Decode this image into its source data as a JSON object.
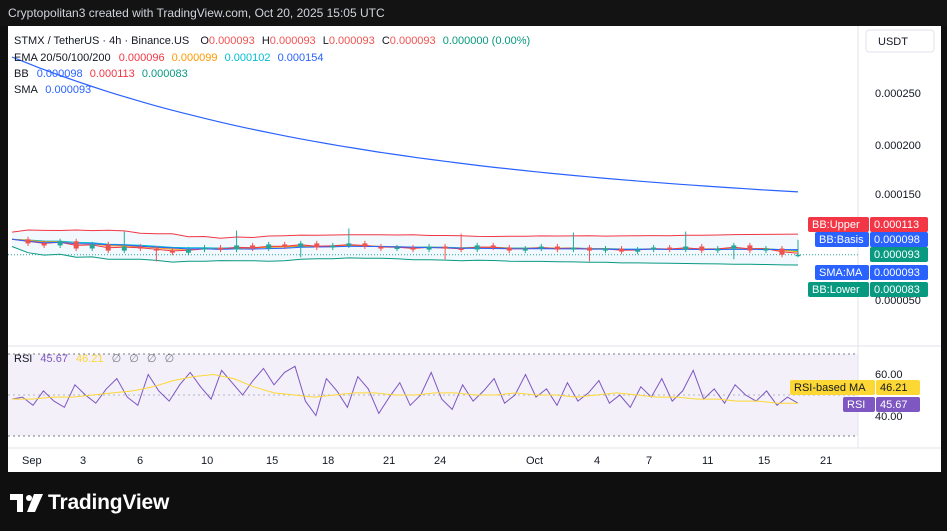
{
  "header": {
    "text": "Cryptopolitan3 created with TradingView.com, Oct 20, 2025 15:05 UTC"
  },
  "footer": {
    "brand": "TradingView"
  },
  "legend": {
    "symbol": "STMX / TetherUS · 4h · Binance.US",
    "ohlc": {
      "o_label": "O",
      "o": "0.000093",
      "h_label": "H",
      "h": "0.000093",
      "l_label": "L",
      "l": "0.000093",
      "c_label": "C",
      "c": "0.000093",
      "chg": "0.000000 (0.00%)"
    },
    "ema": {
      "label": "EMA 20/50/100/200",
      "v20": "0.000096",
      "v50": "0.000099",
      "v100": "0.000102",
      "v200": "0.000154"
    },
    "bb": {
      "label": "BB",
      "basis": "0.000098",
      "upper": "0.000113",
      "lower": "0.000083"
    },
    "sma": {
      "label": "SMA",
      "value": "0.000093"
    }
  },
  "rsi_legend": {
    "label": "RSI",
    "rsi": "45.67",
    "ma": "46.21",
    "extras": [
      "∅",
      "∅",
      "∅",
      "∅"
    ]
  },
  "price_axis": {
    "currency": "USDT",
    "ticks": [
      "0.000250",
      "0.000200",
      "0.000150",
      "0.000050"
    ]
  },
  "price_labels": {
    "upper": {
      "name": "BB:Upper",
      "value": "0.000113"
    },
    "basis": {
      "name": "BB:Basis",
      "value": "0.000098"
    },
    "last": {
      "value": "0.000093"
    },
    "sma": {
      "name": "SMA:MA",
      "value": "0.000093"
    },
    "lower": {
      "name": "BB:Lower",
      "value": "0.000083"
    }
  },
  "rsi_axis": {
    "ticks": [
      "60.00",
      "40.00"
    ]
  },
  "rsi_labels": {
    "ma": {
      "name": "RSI-based MA",
      "value": "46.21"
    },
    "rsi": {
      "name": "RSI",
      "value": "45.67"
    }
  },
  "time_axis": {
    "labels": [
      "Sep",
      "3",
      "6",
      "10",
      "15",
      "18",
      "21",
      "24",
      "Oct",
      "4",
      "7",
      "11",
      "15",
      "21"
    ]
  },
  "colors": {
    "up": "#26a69a",
    "down": "#ef5350",
    "ema20": "#f23645",
    "ema50": "#ff9800",
    "ema100": "#00bcd4",
    "ema200": "#2962ff",
    "bb_basis": "#2962ff",
    "bb_upper": "#f23645",
    "bb_lower": "#089981",
    "rsi": "#7e57c2",
    "rsi_ma": "#fdd835"
  },
  "chart_data": {
    "type": "candlestick",
    "symbol": "STMX / TetherUS",
    "interval": "4h",
    "exchange": "Binance.US",
    "x_range": [
      "Sep",
      "Oct 21"
    ],
    "y_range": [
      3e-05,
      0.00028
    ],
    "price_ticks": [
      0.00025,
      0.0002,
      0.00015,
      5e-05
    ],
    "close_series": [
      0.000108,
      0.000104,
      0.000102,
      0.000106,
      9.9e-05,
      0.000103,
      9.7e-05,
      0.000101,
      9.9e-05,
      9.7e-05,
      9.5e-05,
      9.8e-05,
      0.0001,
      9.8e-05,
      0.000102,
      9.9e-05,
      0.000103,
      0.000101,
      0.000104,
      0.0001,
      0.000102,
      0.000104,
      0.000101,
      9.9e-05,
      0.0001,
      9.8e-05,
      0.000101,
      9.9e-05,
      9.8e-05,
      0.000102,
      0.0001,
      9.7e-05,
      9.9e-05,
      0.000101,
      9.8e-05,
      0.0001,
      9.7e-05,
      9.9e-05,
      9.6e-05,
      9.8e-05,
      0.0001,
      9.8e-05,
      0.000101,
      9.7e-05,
      9.9e-05,
      0.000102,
      9.7e-05,
      9.9e-05,
      9.3e-05,
      9.3e-05
    ],
    "ema200_endpoints": [
      0.000285,
      0.000154
    ],
    "bb_upper_end": 0.000113,
    "bb_basis_end": 9.8e-05,
    "bb_lower_end": 8.3e-05,
    "sma_end": 9.3e-05,
    "rsi": {
      "levels": [
        60.0,
        40.0
      ],
      "values": [
        48,
        49,
        45,
        52,
        47,
        44,
        55,
        50,
        46,
        53,
        58,
        49,
        45,
        60,
        52,
        47,
        55,
        61,
        54,
        48,
        62,
        56,
        50,
        57,
        63,
        55,
        61,
        64,
        47,
        40,
        58,
        52,
        44,
        59,
        53,
        41,
        49,
        56,
        45,
        50,
        61,
        48,
        43,
        55,
        47,
        52,
        58,
        46,
        50,
        60,
        49,
        53,
        45,
        56,
        47,
        51,
        57,
        46,
        50,
        44,
        54,
        49,
        58,
        47,
        52,
        62,
        48,
        53,
        46,
        55,
        50,
        47,
        52,
        45,
        49,
        46
      ],
      "ma_values": [
        48,
        48,
        49,
        49,
        50,
        51,
        52,
        54,
        57,
        59,
        60,
        58,
        54,
        51,
        50,
        49,
        50,
        51,
        51,
        50,
        50,
        51,
        51,
        50,
        50,
        51,
        50,
        50,
        49,
        50,
        51,
        50,
        49,
        49,
        48,
        48,
        47,
        47,
        46,
        46
      ],
      "rsi_last": 45.67,
      "ma_last": 46.21
    }
  }
}
